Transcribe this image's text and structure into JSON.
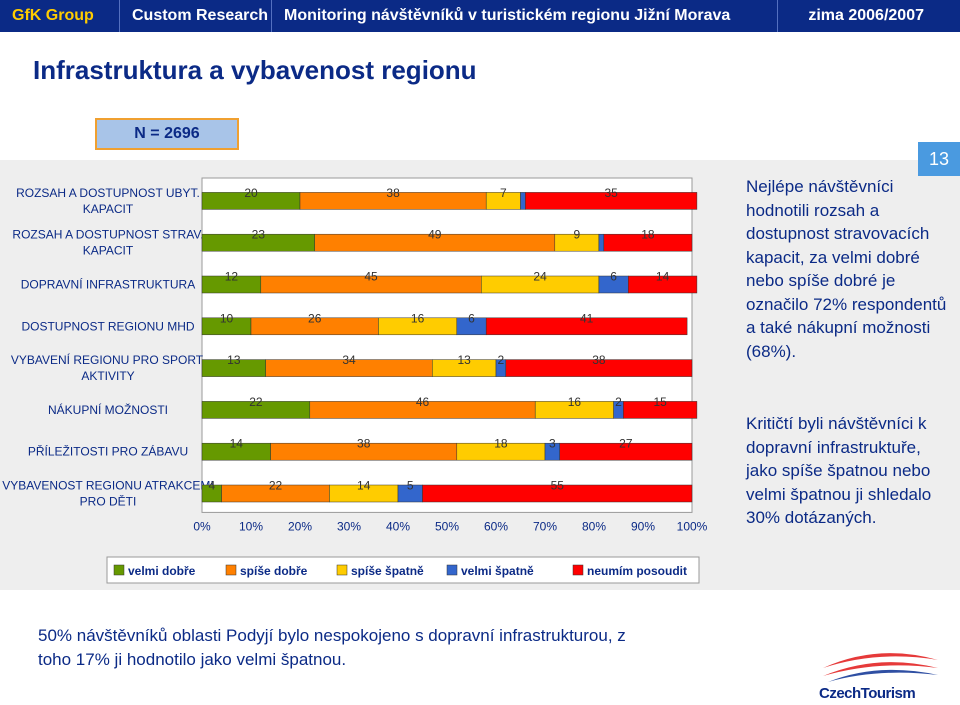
{
  "header": {
    "brand": "GfK Group",
    "division": "Custom Research",
    "title": "Monitoring návštěvníků v turistickém regionu Jižní Morava",
    "season": "zima 2006/2007"
  },
  "page_title": "Infrastruktura a vybavenost regionu",
  "sample_label": "N = 2696",
  "page_number": "13",
  "side_text_1": "Nejlépe návštěvníci hodnotili rozsah a dostupnost stravovacích kapacit, za velmi dobré nebo spíše dobré je označilo 72% respondentů a také nákupní možnosti (68%).",
  "side_text_2": "Kritičtí byli návštěvníci k dopravní infrastruktuře, jako spíše špatnou nebo velmi špatnou ji shledalo 30% dotázaných.",
  "bottom_text": "50% návštěvníků oblasti Podyjí bylo nespokojeno s dopravní infrastrukturou, z toho 17% ji hodnotilo jako velmi špatnou.",
  "logo_text": "CzechTourism",
  "colors": {
    "velmi_dobre": "#669900",
    "spise_dobre": "#ff8000",
    "spise_spatne": "#ffcc00",
    "velmi_spatne": "#3366cc",
    "neumim": "#ff0000"
  },
  "chart_data": {
    "type": "bar",
    "orientation": "horizontal",
    "stacked": true,
    "xlim": [
      0,
      100
    ],
    "x_ticks": [
      "0%",
      "10%",
      "20%",
      "30%",
      "40%",
      "50%",
      "60%",
      "70%",
      "80%",
      "90%",
      "100%"
    ],
    "categories": [
      [
        "ROZSAH A DOSTUPNOST UBYT.",
        "KAPACIT"
      ],
      [
        "ROZSAH A DOSTUPNOST STRAV.",
        "KAPACIT"
      ],
      [
        "DOPRAVNÍ INFRASTRUKTURA"
      ],
      [
        "DOSTUPNOST REGIONU MHD"
      ],
      [
        "VYBAVENÍ REGIONU PRO SPORT.",
        "AKTIVITY"
      ],
      [
        "NÁKUPNÍ MOŽNOSTI"
      ],
      [
        "PŘÍLEŽITOSTI PRO ZÁBAVU"
      ],
      [
        "VYBAVENOST REGIONU ATRAKCEMI",
        "PRO DĚTI"
      ]
    ],
    "series": [
      {
        "name": "velmi dobře",
        "values": [
          20,
          23,
          12,
          10,
          13,
          22,
          14,
          4
        ]
      },
      {
        "name": "spíše dobře",
        "values": [
          38,
          49,
          45,
          26,
          34,
          46,
          38,
          22
        ]
      },
      {
        "name": "spíše špatně",
        "values": [
          7,
          9,
          24,
          16,
          13,
          16,
          18,
          14
        ]
      },
      {
        "name": "velmi špatně",
        "values": [
          1,
          1,
          6,
          6,
          2,
          2,
          3,
          5
        ]
      },
      {
        "name": "neumím posoudit",
        "values": [
          35,
          18,
          14,
          41,
          38,
          15,
          27,
          55
        ]
      }
    ],
    "data_labels": [
      [
        "20",
        "38",
        "7",
        "",
        "35"
      ],
      [
        "23",
        "49",
        "9",
        "",
        "18"
      ],
      [
        "12",
        "45",
        "24",
        "6",
        "14"
      ],
      [
        "10",
        "26",
        "16",
        "6",
        "41"
      ],
      [
        "13",
        "34",
        "13",
        "2",
        "38"
      ],
      [
        "22",
        "46",
        "16",
        "2",
        "15"
      ],
      [
        "14",
        "38",
        "18",
        "3",
        "27"
      ],
      [
        "4",
        "22",
        "14",
        "5",
        "55"
      ]
    ],
    "legend_position": "bottom"
  }
}
